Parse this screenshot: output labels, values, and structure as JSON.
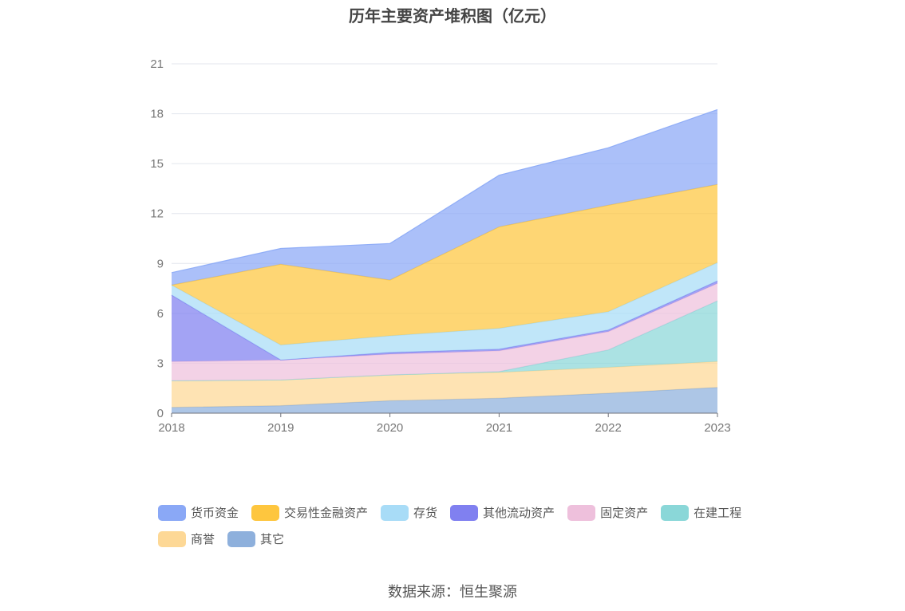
{
  "title": "历年主要资产堆积图（亿元）",
  "source": "数据来源：恒生聚源",
  "chart_data": {
    "type": "area",
    "stacked": true,
    "x": [
      "2018",
      "2019",
      "2020",
      "2021",
      "2022",
      "2023"
    ],
    "ylim": [
      0,
      21
    ],
    "yticks": [
      0,
      3,
      6,
      9,
      12,
      15,
      18,
      21
    ],
    "grid": true,
    "legend_position": "bottom",
    "series": [
      {
        "name": "其它",
        "color": "#8eb0dc",
        "values": [
          0.35,
          0.45,
          0.75,
          0.9,
          1.2,
          1.55
        ]
      },
      {
        "name": "商誉",
        "color": "#fdd896",
        "values": [
          1.6,
          1.55,
          1.55,
          1.55,
          1.55,
          1.55
        ]
      },
      {
        "name": "在建工程",
        "color": "#8ad7d8",
        "values": [
          0.0,
          0.0,
          0.0,
          0.05,
          1.05,
          3.65
        ]
      },
      {
        "name": "固定资产",
        "color": "#eec0dc",
        "values": [
          1.15,
          1.2,
          1.25,
          1.25,
          1.1,
          1.05
        ]
      },
      {
        "name": "其他流动资产",
        "color": "#8080f0",
        "values": [
          4.0,
          0.0,
          0.1,
          0.1,
          0.1,
          0.15
        ]
      },
      {
        "name": "存货",
        "color": "#a8dcf7",
        "values": [
          0.6,
          0.9,
          1.0,
          1.25,
          1.1,
          1.1
        ]
      },
      {
        "name": "交易性金融资产",
        "color": "#fec63e",
        "values": [
          0.0,
          4.85,
          3.35,
          6.1,
          6.4,
          4.7
        ]
      },
      {
        "name": "货币资金",
        "color": "#8aa8f6",
        "values": [
          0.75,
          0.95,
          2.2,
          3.1,
          3.45,
          4.5
        ]
      }
    ]
  },
  "legend": [
    {
      "name": "货币资金",
      "color": "#8aa8f6"
    },
    {
      "name": "交易性金融资产",
      "color": "#fec63e"
    },
    {
      "name": "存货",
      "color": "#a8dcf7"
    },
    {
      "name": "其他流动资产",
      "color": "#8080f0"
    },
    {
      "name": "固定资产",
      "color": "#eec0dc"
    },
    {
      "name": "在建工程",
      "color": "#8ad7d8"
    },
    {
      "name": "商誉",
      "color": "#fdd896"
    },
    {
      "name": "其它",
      "color": "#8eb0dc"
    }
  ]
}
